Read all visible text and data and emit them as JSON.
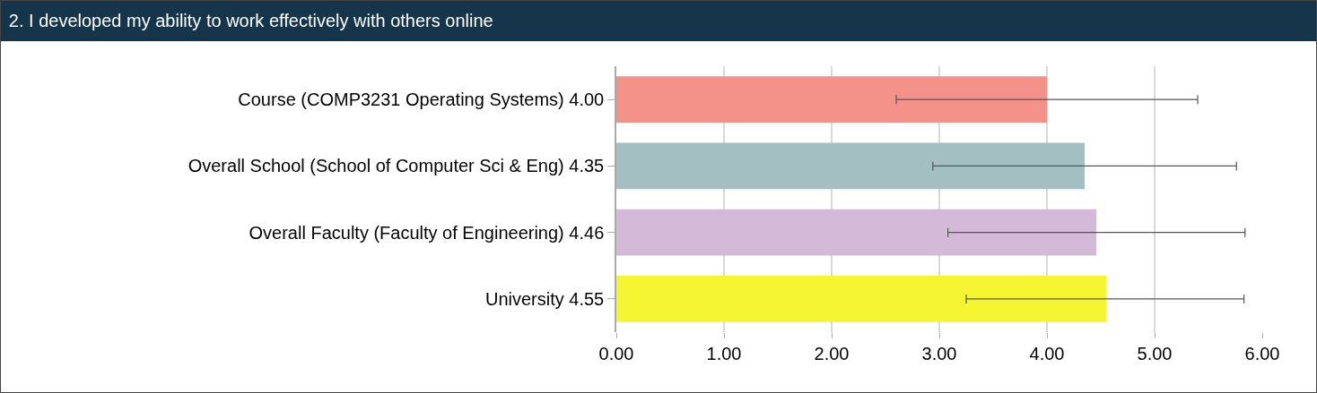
{
  "chart_data": {
    "type": "bar",
    "orientation": "horizontal",
    "title": "2. I developed my ability to work effectively with others online",
    "categories": [
      "Course (COMP3231 Operating Systems) 4.00",
      "Overall School (School of Computer Sci & Eng) 4.35",
      "Overall Faculty (Faculty of Engineering) 4.46",
      "University 4.55"
    ],
    "values": [
      4.0,
      4.35,
      4.46,
      4.55
    ],
    "colors": [
      "#f4928a",
      "#a3bfc2",
      "#d5b9d9",
      "#f5f532"
    ],
    "errors": [
      [
        2.6,
        5.4
      ],
      [
        2.94,
        5.76
      ],
      [
        3.08,
        5.84
      ],
      [
        3.25,
        5.83
      ]
    ],
    "xlim": [
      0,
      6
    ],
    "xticks": [
      {
        "value": 0,
        "label": "0.00"
      },
      {
        "value": 1,
        "label": "1.00"
      },
      {
        "value": 2,
        "label": "2.00"
      },
      {
        "value": 3,
        "label": "3.00"
      },
      {
        "value": 4,
        "label": "4.00"
      },
      {
        "value": 5,
        "label": "5.00"
      },
      {
        "value": 6,
        "label": "6.00"
      }
    ],
    "grid": "x"
  }
}
